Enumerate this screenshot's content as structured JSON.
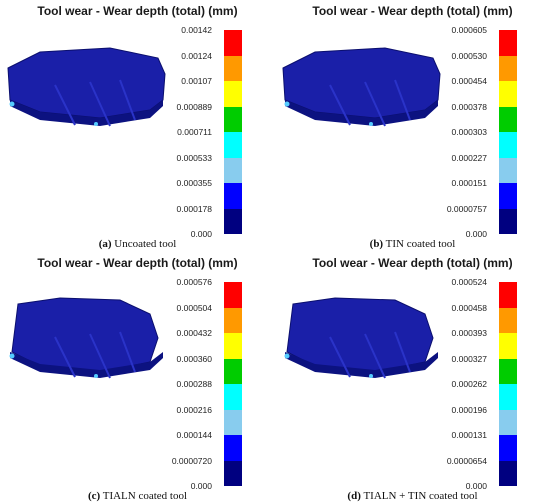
{
  "panels": [
    {
      "title": "Tool wear - Wear depth (total) (mm)",
      "ticks": [
        "0.00142",
        "0.00124",
        "0.00107",
        "0.000889",
        "0.000711",
        "0.000533",
        "0.000355",
        "0.000178",
        "0.000"
      ],
      "caption_letter": "(a)",
      "caption_text": "Uncoated tool"
    },
    {
      "title": "Tool wear - Wear depth (total) (mm)",
      "ticks": [
        "0.000605",
        "0.000530",
        "0.000454",
        "0.000378",
        "0.000303",
        "0.000227",
        "0.000151",
        "0.0000757",
        "0.000"
      ],
      "caption_letter": "(b)",
      "caption_text": "TIN coated tool"
    },
    {
      "title": "Tool wear - Wear depth (total) (mm)",
      "ticks": [
        "0.000576",
        "0.000504",
        "0.000432",
        "0.000360",
        "0.000288",
        "0.000216",
        "0.000144",
        "0.0000720",
        "0.000"
      ],
      "caption_letter": "(c)",
      "caption_text": "TIALN coated tool"
    },
    {
      "title": "Tool wear - Wear depth (total) (mm)",
      "ticks": [
        "0.000524",
        "0.000458",
        "0.000393",
        "0.000327",
        "0.000262",
        "0.000196",
        "0.000131",
        "0.0000654",
        "0.000"
      ],
      "caption_letter": "(d)",
      "caption_text": "TIALN + TIN coated tool"
    }
  ],
  "colormap": [
    "#ff0000",
    "#ff9900",
    "#ffff00",
    "#00cc00",
    "#00ffff",
    "#88ccee",
    "#0000ff",
    "#000080"
  ]
}
